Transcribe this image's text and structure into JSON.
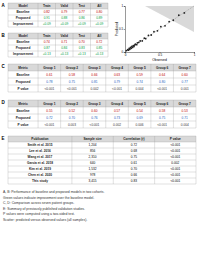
{
  "tables": [
    {
      "label": "A",
      "header": [
        "Model",
        "Train",
        "Valid",
        "Test",
        "All"
      ],
      "rows": [
        {
          "cells": [
            "Baseline",
            "0.82",
            "0.79",
            "0.77",
            "0.80"
          ],
          "color": "#c00000"
        },
        {
          "cells": [
            "Proposed",
            "0.91",
            "0.88",
            "0.86",
            "0.89"
          ],
          "color": "#00a040"
        },
        {
          "cells": [
            "Improvement",
            "+0.09",
            "+0.09",
            "+0.09",
            "+0.09"
          ],
          "color": "#00a040"
        }
      ]
    },
    {
      "label": "B",
      "header": [
        "Model",
        "Train",
        "Valid",
        "Test",
        "All"
      ],
      "rows": [
        {
          "cells": [
            "Baseline",
            "0.74",
            "0.71",
            "0.70",
            "0.72"
          ],
          "color": "#c00000"
        },
        {
          "cells": [
            "Proposed",
            "0.87",
            "0.84",
            "0.83",
            "0.85"
          ],
          "color": "#00a040"
        },
        {
          "cells": [
            "Improvement",
            "+0.13",
            "+0.13",
            "+0.13",
            "+0.13"
          ],
          "color": "#00a040"
        }
      ]
    },
    {
      "label": "C",
      "header": [
        "Metric",
        "Group 1",
        "Group 2",
        "Group 3",
        "Group 4",
        "Group 5",
        "Group 6",
        "Group 7"
      ],
      "rows": [
        {
          "cells": [
            "Baseline",
            "0.61",
            "0.58",
            "0.66",
            "0.63",
            "0.59",
            "0.64",
            "0.60"
          ],
          "color": "#c00000"
        },
        {
          "cells": [
            "Proposed",
            "0.78",
            "0.75",
            "0.81",
            "0.79",
            "0.74",
            "0.80",
            "0.77"
          ],
          "color": "#2060c0"
        },
        {
          "cells": [
            "P value",
            "<0.001",
            "<0.001",
            "0.002",
            "<0.001",
            "0.004",
            "<0.001",
            "0.001"
          ],
          "color": "#333333"
        }
      ]
    },
    {
      "label": "D",
      "header": [
        "Metric",
        "Group 1",
        "Group 2",
        "Group 3",
        "Group 4",
        "Group 5",
        "Group 6",
        "Group 7"
      ],
      "rows": [
        {
          "cells": [
            "Baseline",
            "0.55",
            "0.52",
            "0.60",
            "0.57",
            "0.54",
            "0.58",
            "0.53"
          ],
          "color": "#c00000"
        },
        {
          "cells": [
            "Proposed",
            "0.72",
            "0.70",
            "0.76",
            "0.73",
            "0.69",
            "0.75",
            "0.71"
          ],
          "color": "#2060c0"
        },
        {
          "cells": [
            "P value",
            "<0.001",
            "0.003",
            "<0.001",
            "0.002",
            "0.006",
            "<0.001",
            "0.004"
          ],
          "color": "#333333"
        }
      ]
    },
    {
      "label": "E",
      "header": [
        "Publication",
        "Sample size",
        "Correlation (r)",
        "P value"
      ],
      "rows": [
        {
          "cells": [
            "Smith et al. 2015",
            "1,204",
            "0.72",
            "<0.001"
          ],
          "color": "#000000"
        },
        {
          "cells": [
            "Lee et al. 2016",
            "856",
            "0.68",
            "<0.001"
          ],
          "color": "#000000"
        },
        {
          "cells": [
            "Wang et al. 2017",
            "2,310",
            "0.75",
            "<0.001"
          ],
          "color": "#000000"
        },
        {
          "cells": [
            "Garcia et al. 2018",
            "640",
            "0.61",
            "0.002"
          ],
          "color": "#000000"
        },
        {
          "cells": [
            "Kim et al. 2019",
            "1,532",
            "0.70",
            "<0.001"
          ],
          "color": "#000000"
        },
        {
          "cells": [
            "Chen et al. 2020",
            "978",
            "0.66",
            "<0.001"
          ],
          "color": "#000000"
        },
        {
          "cells": [
            "This study",
            "3,415",
            "0.83",
            "<0.001"
          ],
          "color": "#000000"
        }
      ]
    }
  ],
  "chart_data": {
    "type": "scatter",
    "xlabel": "Observed",
    "ylabel": "Predicted",
    "color": "#222222",
    "x": [
      0.02,
      0.04,
      0.05,
      0.06,
      0.07,
      0.08,
      0.09,
      0.1,
      0.11,
      0.12,
      0.13,
      0.14,
      0.15,
      0.17,
      0.18,
      0.2,
      0.22,
      0.25,
      0.28,
      0.3,
      0.34,
      0.38,
      0.42,
      0.47,
      0.52,
      0.58,
      0.64,
      0.7,
      0.78,
      0.86
    ],
    "values": [
      0.03,
      0.05,
      0.04,
      0.08,
      0.06,
      0.1,
      0.08,
      0.12,
      0.1,
      0.14,
      0.12,
      0.15,
      0.17,
      0.16,
      0.2,
      0.21,
      0.24,
      0.24,
      0.3,
      0.29,
      0.36,
      0.37,
      0.44,
      0.46,
      0.55,
      0.57,
      0.66,
      0.69,
      0.8,
      0.85
    ],
    "xlim": [
      0,
      1
    ],
    "ylim": [
      0,
      1
    ],
    "xticks": [
      0,
      0.5,
      1
    ],
    "yticks": [
      0,
      0.5,
      1
    ]
  },
  "footnotes": [
    "A, B: Performance of baseline and proposed models in two cohorts.",
    "Green values indicate improvement over the baseline model.",
    "C, D: Comparison across seven patient groups.",
    "E: Summary of previously published validation studies.",
    "P values were computed using a two-sided test.",
    "Scatter: predicted versus observed values (all samples)."
  ]
}
